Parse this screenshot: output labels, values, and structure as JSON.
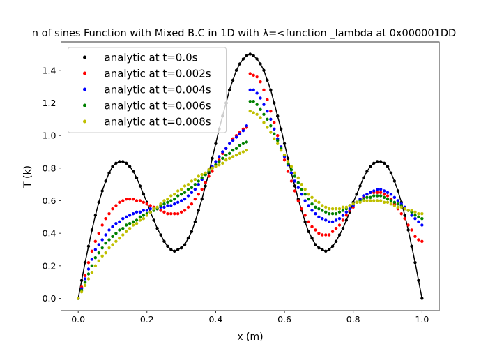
{
  "chart_data": {
    "type": "line",
    "title": "n of sines Function with Mixed B.C in 1D with λ=<function _lambda at 0x000001DD",
    "xlabel": "x (m)",
    "ylabel": "T (k)",
    "xlim": [
      -0.05,
      1.05
    ],
    "ylim": [
      -0.075,
      1.575
    ],
    "xticks": [
      {
        "value": 0,
        "label": "0.0"
      },
      0.2,
      0.4,
      0.6,
      0.8,
      {
        "value": 1,
        "label": "1.0"
      }
    ],
    "yticks": [
      {
        "value": 0,
        "label": "0.0"
      },
      0.2,
      0.4,
      0.6,
      0.8,
      {
        "value": 1,
        "label": "1.0"
      },
      1.2,
      1.4
    ],
    "grid": false,
    "legend": "upper left",
    "x": [
      0,
      0.01,
      0.02,
      0.03,
      0.04,
      0.05,
      0.06,
      0.07,
      0.08,
      0.09,
      0.1,
      0.11,
      0.12,
      0.13,
      0.14,
      0.15,
      0.16,
      0.17,
      0.18,
      0.19,
      0.2,
      0.21,
      0.22,
      0.23,
      0.24,
      0.25,
      0.26,
      0.27,
      0.28,
      0.29,
      0.3,
      0.31,
      0.32,
      0.33,
      0.34,
      0.35,
      0.36,
      0.37,
      0.38,
      0.39,
      0.4,
      0.41,
      0.42,
      0.43,
      0.44,
      0.45,
      0.46,
      0.47,
      0.48,
      0.49,
      0.5,
      0.51,
      0.52,
      0.53,
      0.54,
      0.55,
      0.56,
      0.57,
      0.58,
      0.59,
      0.6,
      0.61,
      0.62,
      0.63,
      0.64,
      0.65,
      0.66,
      0.67,
      0.68,
      0.69,
      0.7,
      0.71,
      0.72,
      0.73,
      0.74,
      0.75,
      0.76,
      0.77,
      0.78,
      0.79,
      0.8,
      0.81,
      0.82,
      0.83,
      0.84,
      0.85,
      0.86,
      0.87,
      0.88,
      0.89,
      0.9,
      0.91,
      0.92,
      0.93,
      0.94,
      0.95,
      0.96,
      0.97,
      0.98,
      0.99,
      1
    ],
    "series": [
      {
        "name": "analytic at t=0.0s",
        "color": "#000000",
        "marker": "dot",
        "linestyle": "solid",
        "values": [
          0,
          0.11,
          0.22,
          0.32,
          0.42,
          0.51,
          0.59,
          0.66,
          0.72,
          0.77,
          0.81,
          0.83,
          0.84,
          0.84,
          0.83,
          0.81,
          0.78,
          0.74,
          0.69,
          0.64,
          0.59,
          0.53,
          0.48,
          0.43,
          0.39,
          0.35,
          0.32,
          0.3,
          0.29,
          0.3,
          0.31,
          0.33,
          0.37,
          0.41,
          0.47,
          0.54,
          0.61,
          0.69,
          0.77,
          0.86,
          0.95,
          1.04,
          1.12,
          1.2,
          1.28,
          1.34,
          1.4,
          1.44,
          1.47,
          1.49,
          1.5,
          1.49,
          1.47,
          1.44,
          1.4,
          1.34,
          1.28,
          1.2,
          1.12,
          1.04,
          0.95,
          0.86,
          0.77,
          0.69,
          0.61,
          0.54,
          0.47,
          0.41,
          0.37,
          0.33,
          0.31,
          0.3,
          0.29,
          0.3,
          0.32,
          0.35,
          0.39,
          0.43,
          0.48,
          0.53,
          0.59,
          0.64,
          0.69,
          0.74,
          0.78,
          0.81,
          0.83,
          0.84,
          0.84,
          0.83,
          0.81,
          0.77,
          0.72,
          0.66,
          0.59,
          0.51,
          0.42,
          0.32,
          0.22,
          0.11,
          0
        ]
      },
      {
        "name": "analytic at t=0.002s",
        "color": "#ff0000",
        "marker": "dot",
        "linestyle": "none",
        "values": [
          0,
          0.07,
          0.14,
          0.22,
          0.29,
          0.35,
          0.4,
          0.45,
          0.49,
          0.52,
          0.55,
          0.57,
          0.59,
          0.6,
          0.61,
          0.61,
          0.61,
          0.6,
          0.6,
          0.59,
          0.58,
          0.57,
          0.56,
          0.55,
          0.54,
          0.53,
          0.52,
          0.52,
          0.52,
          0.52,
          0.53,
          0.54,
          0.56,
          0.58,
          0.61,
          0.64,
          0.67,
          0.71,
          0.75,
          0.78,
          0.82,
          0.85,
          0.89,
          0.92,
          0.95,
          0.98,
          1,
          1.02,
          1.04,
          1.05,
          1.38,
          1.37,
          1.36,
          1.33,
          1.28,
          1.22,
          1.15,
          1.08,
          1,
          0.93,
          0.85,
          0.78,
          0.72,
          0.66,
          0.6,
          0.55,
          0.51,
          0.47,
          0.44,
          0.42,
          0.4,
          0.39,
          0.39,
          0.39,
          0.41,
          0.43,
          0.45,
          0.48,
          0.51,
          0.54,
          0.56,
          0.59,
          0.61,
          0.62,
          0.64,
          0.65,
          0.65,
          0.65,
          0.65,
          0.64,
          0.63,
          0.61,
          0.58,
          0.55,
          0.52,
          0.49,
          0.45,
          0.42,
          0.38,
          0.36,
          0.35
        ]
      },
      {
        "name": "analytic at t=0.004s",
        "color": "#0000ff",
        "marker": "dot",
        "linestyle": "none",
        "values": [
          0,
          0.06,
          0.12,
          0.18,
          0.24,
          0.3,
          0.33,
          0.36,
          0.39,
          0.42,
          0.44,
          0.46,
          0.47,
          0.49,
          0.5,
          0.51,
          0.52,
          0.53,
          0.53,
          0.54,
          0.54,
          0.55,
          0.55,
          0.55,
          0.56,
          0.56,
          0.57,
          0.57,
          0.58,
          0.59,
          0.6,
          0.61,
          0.63,
          0.65,
          0.67,
          0.7,
          0.73,
          0.76,
          0.79,
          0.81,
          0.84,
          0.87,
          0.9,
          0.92,
          0.95,
          0.97,
          0.99,
          1.01,
          1.03,
          1.06,
          1.28,
          1.28,
          1.26,
          1.23,
          1.19,
          1.15,
          1.1,
          1.04,
          0.98,
          0.93,
          0.87,
          0.82,
          0.77,
          0.72,
          0.68,
          0.64,
          0.6,
          0.57,
          0.54,
          0.52,
          0.5,
          0.49,
          0.48,
          0.47,
          0.47,
          0.48,
          0.49,
          0.51,
          0.53,
          0.55,
          0.57,
          0.59,
          0.61,
          0.63,
          0.64,
          0.65,
          0.66,
          0.67,
          0.67,
          0.66,
          0.65,
          0.64,
          0.62,
          0.6,
          0.58,
          0.56,
          0.54,
          0.51,
          0.49,
          0.47,
          0.45
        ]
      },
      {
        "name": "analytic at t=0.006s",
        "color": "#008000",
        "marker": "dot",
        "linestyle": "none",
        "values": [
          0,
          0.05,
          0.1,
          0.15,
          0.2,
          0.25,
          0.28,
          0.31,
          0.34,
          0.36,
          0.38,
          0.4,
          0.42,
          0.43,
          0.45,
          0.46,
          0.47,
          0.48,
          0.5,
          0.51,
          0.52,
          0.53,
          0.54,
          0.55,
          0.57,
          0.58,
          0.59,
          0.6,
          0.61,
          0.63,
          0.64,
          0.65,
          0.67,
          0.68,
          0.7,
          0.72,
          0.74,
          0.76,
          0.78,
          0.8,
          0.82,
          0.84,
          0.86,
          0.88,
          0.89,
          0.91,
          0.92,
          0.94,
          0.95,
          0.96,
          1.21,
          1.21,
          1.19,
          1.16,
          1.13,
          1.1,
          1.06,
          1.01,
          0.97,
          0.92,
          0.88,
          0.83,
          0.79,
          0.75,
          0.71,
          0.67,
          0.64,
          0.61,
          0.58,
          0.56,
          0.55,
          0.54,
          0.53,
          0.52,
          0.52,
          0.52,
          0.53,
          0.54,
          0.55,
          0.57,
          0.58,
          0.59,
          0.6,
          0.61,
          0.62,
          0.62,
          0.63,
          0.63,
          0.63,
          0.62,
          0.61,
          0.6,
          0.59,
          0.58,
          0.57,
          0.55,
          0.54,
          0.53,
          0.51,
          0.5,
          0.49
        ]
      },
      {
        "name": "analytic at t=0.008s",
        "color": "#bfbf00",
        "marker": "dot",
        "linestyle": "none",
        "values": [
          0,
          0.04,
          0.08,
          0.12,
          0.16,
          0.2,
          0.23,
          0.26,
          0.28,
          0.31,
          0.33,
          0.35,
          0.37,
          0.39,
          0.41,
          0.43,
          0.45,
          0.46,
          0.48,
          0.49,
          0.51,
          0.53,
          0.55,
          0.56,
          0.58,
          0.6,
          0.61,
          0.63,
          0.64,
          0.66,
          0.67,
          0.69,
          0.7,
          0.72,
          0.73,
          0.75,
          0.76,
          0.77,
          0.79,
          0.8,
          0.81,
          0.82,
          0.83,
          0.85,
          0.86,
          0.87,
          0.88,
          0.89,
          0.9,
          0.91,
          1.15,
          1.14,
          1.13,
          1.11,
          1.08,
          1.05,
          1.02,
          0.98,
          0.95,
          0.91,
          0.88,
          0.84,
          0.81,
          0.77,
          0.74,
          0.7,
          0.67,
          0.64,
          0.62,
          0.6,
          0.59,
          0.57,
          0.56,
          0.55,
          0.55,
          0.55,
          0.55,
          0.56,
          0.56,
          0.57,
          0.58,
          0.59,
          0.59,
          0.6,
          0.6,
          0.6,
          0.6,
          0.6,
          0.6,
          0.59,
          0.59,
          0.58,
          0.57,
          0.56,
          0.56,
          0.55,
          0.54,
          0.54,
          0.53,
          0.52,
          0.52
        ]
      }
    ]
  }
}
